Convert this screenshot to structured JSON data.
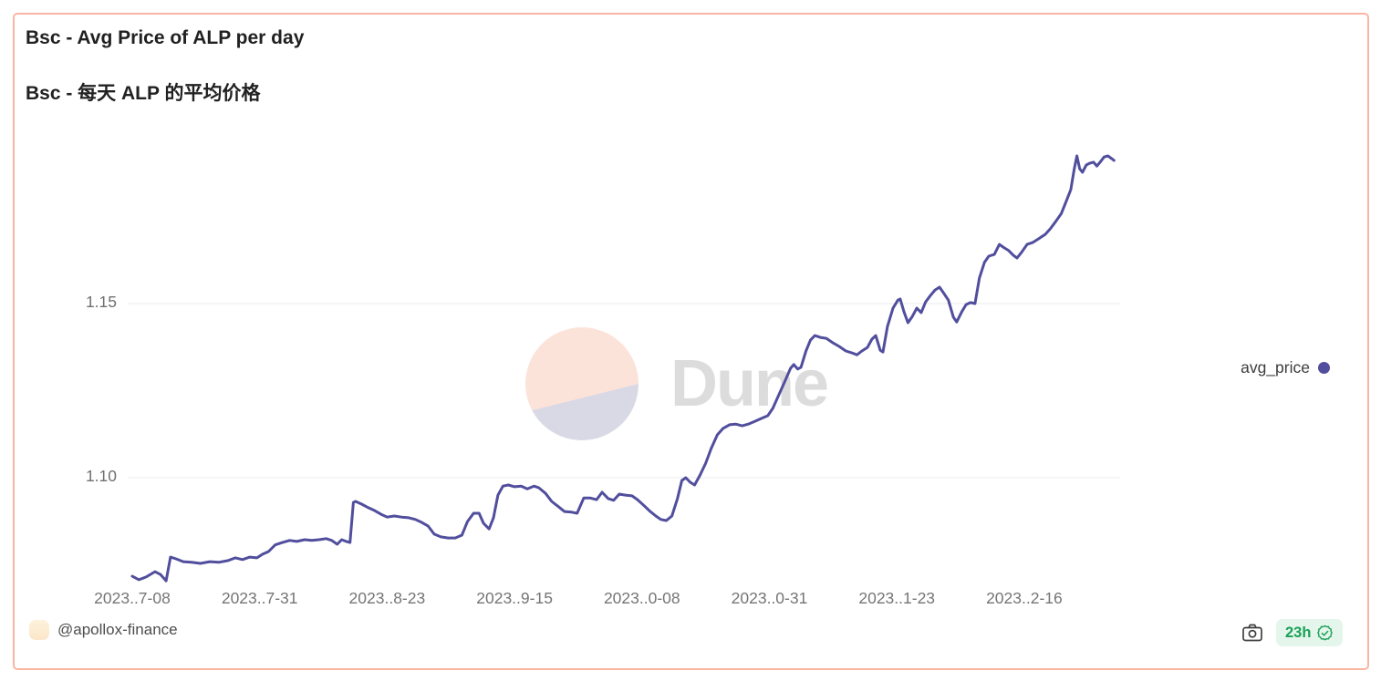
{
  "card": {
    "title": "Bsc - Avg Price of ALP per day",
    "subtitle": "Bsc - 每天 ALP 的平均价格",
    "border_color": "#fab5a3"
  },
  "watermark": {
    "text": "Dune",
    "pie_top_color": "#fce3da",
    "pie_bottom_color": "#d9d9e6",
    "pie_icon": "dune-pie-logo"
  },
  "legend": {
    "label": "avg_price",
    "dot_color": "#514e9d",
    "position": "right"
  },
  "footer": {
    "author_handle": "@apollox-finance",
    "avatar_color": "#fbe9cd",
    "camera_icon": "camera-icon",
    "refresh_age": "23h",
    "verified_icon": "verified-seal-icon",
    "badge_bg": "#e4f6eb",
    "badge_color": "#1ba158"
  },
  "chart_data": {
    "type": "line",
    "title": "Bsc - Avg Price of ALP per day",
    "xlabel": "",
    "ylabel": "",
    "grid": "horizontal-only",
    "legend_position": "right",
    "line_color": "#514e9d",
    "gridline_color": "#ebebeb",
    "ylim": [
      1.068,
      1.196
    ],
    "xlim_days": [
      0,
      178
    ],
    "y_ticks": [
      {
        "label": "1.15",
        "value": 1.15
      },
      {
        "label": "1.10",
        "value": 1.1
      }
    ],
    "x_ticks": [
      {
        "label": "2023..7-08",
        "day": 0
      },
      {
        "label": "2023..7-31",
        "day": 23
      },
      {
        "label": "2023..8-23",
        "day": 46
      },
      {
        "label": "2023..9-15",
        "day": 69
      },
      {
        "label": "2023..0-08",
        "day": 92
      },
      {
        "label": "2023..0-31",
        "day": 115
      },
      {
        "label": "2023..1-23",
        "day": 138
      },
      {
        "label": "2023..2-16",
        "day": 161
      }
    ],
    "series": [
      {
        "name": "avg_price",
        "color": "#514e9d",
        "points": [
          [
            0,
            1.0717
          ],
          [
            1.2,
            1.0707
          ],
          [
            2.5,
            1.0715
          ],
          [
            4.1,
            1.073
          ],
          [
            5.1,
            1.0722
          ],
          [
            6.1,
            1.0704
          ],
          [
            6.9,
            1.0772
          ],
          [
            7.9,
            1.0767
          ],
          [
            9.2,
            1.0759
          ],
          [
            10.7,
            1.0757
          ],
          [
            12.3,
            1.0754
          ],
          [
            14,
            1.0759
          ],
          [
            15.6,
            1.0757
          ],
          [
            17.3,
            1.0762
          ],
          [
            18.6,
            1.077
          ],
          [
            19.9,
            1.0765
          ],
          [
            21.2,
            1.0772
          ],
          [
            22.5,
            1.077
          ],
          [
            23.5,
            1.078
          ],
          [
            24.6,
            1.0788
          ],
          [
            25.8,
            1.0807
          ],
          [
            27.1,
            1.0814
          ],
          [
            28.4,
            1.082
          ],
          [
            29.7,
            1.0817
          ],
          [
            31.1,
            1.0822
          ],
          [
            32.4,
            1.082
          ],
          [
            33.7,
            1.0822
          ],
          [
            35,
            1.0825
          ],
          [
            36,
            1.082
          ],
          [
            37,
            1.0809
          ],
          [
            37.8,
            1.0822
          ],
          [
            38.6,
            1.0817
          ],
          [
            39.3,
            1.0814
          ],
          [
            39.9,
            1.0929
          ],
          [
            40.3,
            1.0932
          ],
          [
            41.4,
            1.0924
          ],
          [
            42.6,
            1.0914
          ],
          [
            43.7,
            1.0906
          ],
          [
            44.9,
            1.0895
          ],
          [
            46,
            1.0887
          ],
          [
            47.3,
            1.089
          ],
          [
            48.6,
            1.0887
          ],
          [
            49.9,
            1.0885
          ],
          [
            51.1,
            1.088
          ],
          [
            52.2,
            1.0872
          ],
          [
            53.4,
            1.0861
          ],
          [
            54.5,
            1.0838
          ],
          [
            55.7,
            1.083
          ],
          [
            57,
            1.0827
          ],
          [
            58.3,
            1.0827
          ],
          [
            59.5,
            1.0835
          ],
          [
            60.5,
            1.0874
          ],
          [
            61.6,
            1.0898
          ],
          [
            62.6,
            1.0898
          ],
          [
            63.4,
            1.0869
          ],
          [
            64.4,
            1.0853
          ],
          [
            65.2,
            1.0885
          ],
          [
            66,
            1.095
          ],
          [
            66.9,
            1.0976
          ],
          [
            67.9,
            1.0979
          ],
          [
            69,
            1.0974
          ],
          [
            70.2,
            1.0976
          ],
          [
            71.3,
            1.0968
          ],
          [
            72.5,
            1.0976
          ],
          [
            73.4,
            1.0971
          ],
          [
            74.6,
            1.0955
          ],
          [
            75.7,
            1.0932
          ],
          [
            76.9,
            1.0917
          ],
          [
            78,
            1.0903
          ],
          [
            79.3,
            1.0901
          ],
          [
            80.3,
            1.0898
          ],
          [
            81.5,
            1.0942
          ],
          [
            82.6,
            1.0942
          ],
          [
            83.8,
            1.0937
          ],
          [
            84.8,
            1.0958
          ],
          [
            85.9,
            1.094
          ],
          [
            86.9,
            1.0935
          ],
          [
            87.9,
            1.0953
          ],
          [
            89,
            1.095
          ],
          [
            90.2,
            1.0948
          ],
          [
            91.2,
            1.0937
          ],
          [
            92.3,
            1.0921
          ],
          [
            93.5,
            1.0903
          ],
          [
            94.5,
            1.089
          ],
          [
            95.4,
            1.088
          ],
          [
            96.4,
            1.0877
          ],
          [
            97.4,
            1.089
          ],
          [
            98.4,
            1.094
          ],
          [
            99.2,
            1.0992
          ],
          [
            99.9,
            1.1
          ],
          [
            100.7,
            1.0987
          ],
          [
            101.5,
            1.0979
          ],
          [
            102.5,
            1.1008
          ],
          [
            103.5,
            1.1042
          ],
          [
            104.5,
            1.1084
          ],
          [
            105.6,
            1.1123
          ],
          [
            106.6,
            1.1141
          ],
          [
            107.8,
            1.1152
          ],
          [
            108.9,
            1.1154
          ],
          [
            110.1,
            1.1149
          ],
          [
            111.2,
            1.1154
          ],
          [
            112.4,
            1.1162
          ],
          [
            113.5,
            1.117
          ],
          [
            114.7,
            1.1178
          ],
          [
            115.6,
            1.1199
          ],
          [
            116.8,
            1.1241
          ],
          [
            117.8,
            1.1277
          ],
          [
            118.8,
            1.1314
          ],
          [
            119.4,
            1.1325
          ],
          [
            120.1,
            1.1312
          ],
          [
            120.7,
            1.1317
          ],
          [
            121.6,
            1.1364
          ],
          [
            122.4,
            1.1395
          ],
          [
            123.2,
            1.1408
          ],
          [
            124.2,
            1.1403
          ],
          [
            125.3,
            1.14
          ],
          [
            126.5,
            1.1387
          ],
          [
            127.6,
            1.1377
          ],
          [
            128.8,
            1.1364
          ],
          [
            129.8,
            1.1359
          ],
          [
            130.8,
            1.1353
          ],
          [
            131.7,
            1.1364
          ],
          [
            132.7,
            1.1374
          ],
          [
            133.5,
            1.1398
          ],
          [
            134.2,
            1.1408
          ],
          [
            135,
            1.1366
          ],
          [
            135.5,
            1.1361
          ],
          [
            136.3,
            1.1434
          ],
          [
            137.3,
            1.1487
          ],
          [
            138.2,
            1.151
          ],
          [
            138.6,
            1.1513
          ],
          [
            139.3,
            1.1476
          ],
          [
            140,
            1.1445
          ],
          [
            140.8,
            1.1463
          ],
          [
            141.6,
            1.1487
          ],
          [
            142.4,
            1.1474
          ],
          [
            143.2,
            1.1505
          ],
          [
            144.1,
            1.1524
          ],
          [
            144.9,
            1.1539
          ],
          [
            145.7,
            1.1547
          ],
          [
            146.5,
            1.1529
          ],
          [
            147.3,
            1.151
          ],
          [
            148.2,
            1.1461
          ],
          [
            148.8,
            1.1447
          ],
          [
            149.7,
            1.1476
          ],
          [
            150.5,
            1.1497
          ],
          [
            151.3,
            1.1503
          ],
          [
            152.1,
            1.15
          ],
          [
            152.9,
            1.1573
          ],
          [
            153.8,
            1.1618
          ],
          [
            154.6,
            1.1636
          ],
          [
            155.6,
            1.1641
          ],
          [
            156.5,
            1.167
          ],
          [
            157.4,
            1.166
          ],
          [
            158.2,
            1.1652
          ],
          [
            159,
            1.1639
          ],
          [
            159.7,
            1.1631
          ],
          [
            160.5,
            1.1647
          ],
          [
            161.5,
            1.167
          ],
          [
            162.5,
            1.1675
          ],
          [
            163.6,
            1.1686
          ],
          [
            164.8,
            1.1699
          ],
          [
            165.7,
            1.1715
          ],
          [
            166.7,
            1.1736
          ],
          [
            167.7,
            1.1759
          ],
          [
            168.5,
            1.1791
          ],
          [
            169.4,
            1.1827
          ],
          [
            170,
            1.1885
          ],
          [
            170.5,
            1.1924
          ],
          [
            171,
            1.1887
          ],
          [
            171.5,
            1.1877
          ],
          [
            172.2,
            1.1898
          ],
          [
            172.8,
            1.1903
          ],
          [
            173.5,
            1.1906
          ],
          [
            174.1,
            1.1895
          ],
          [
            174.8,
            1.1908
          ],
          [
            175.4,
            1.1921
          ],
          [
            176.1,
            1.1924
          ],
          [
            176.8,
            1.1916
          ],
          [
            177.2,
            1.1911
          ]
        ]
      }
    ]
  }
}
